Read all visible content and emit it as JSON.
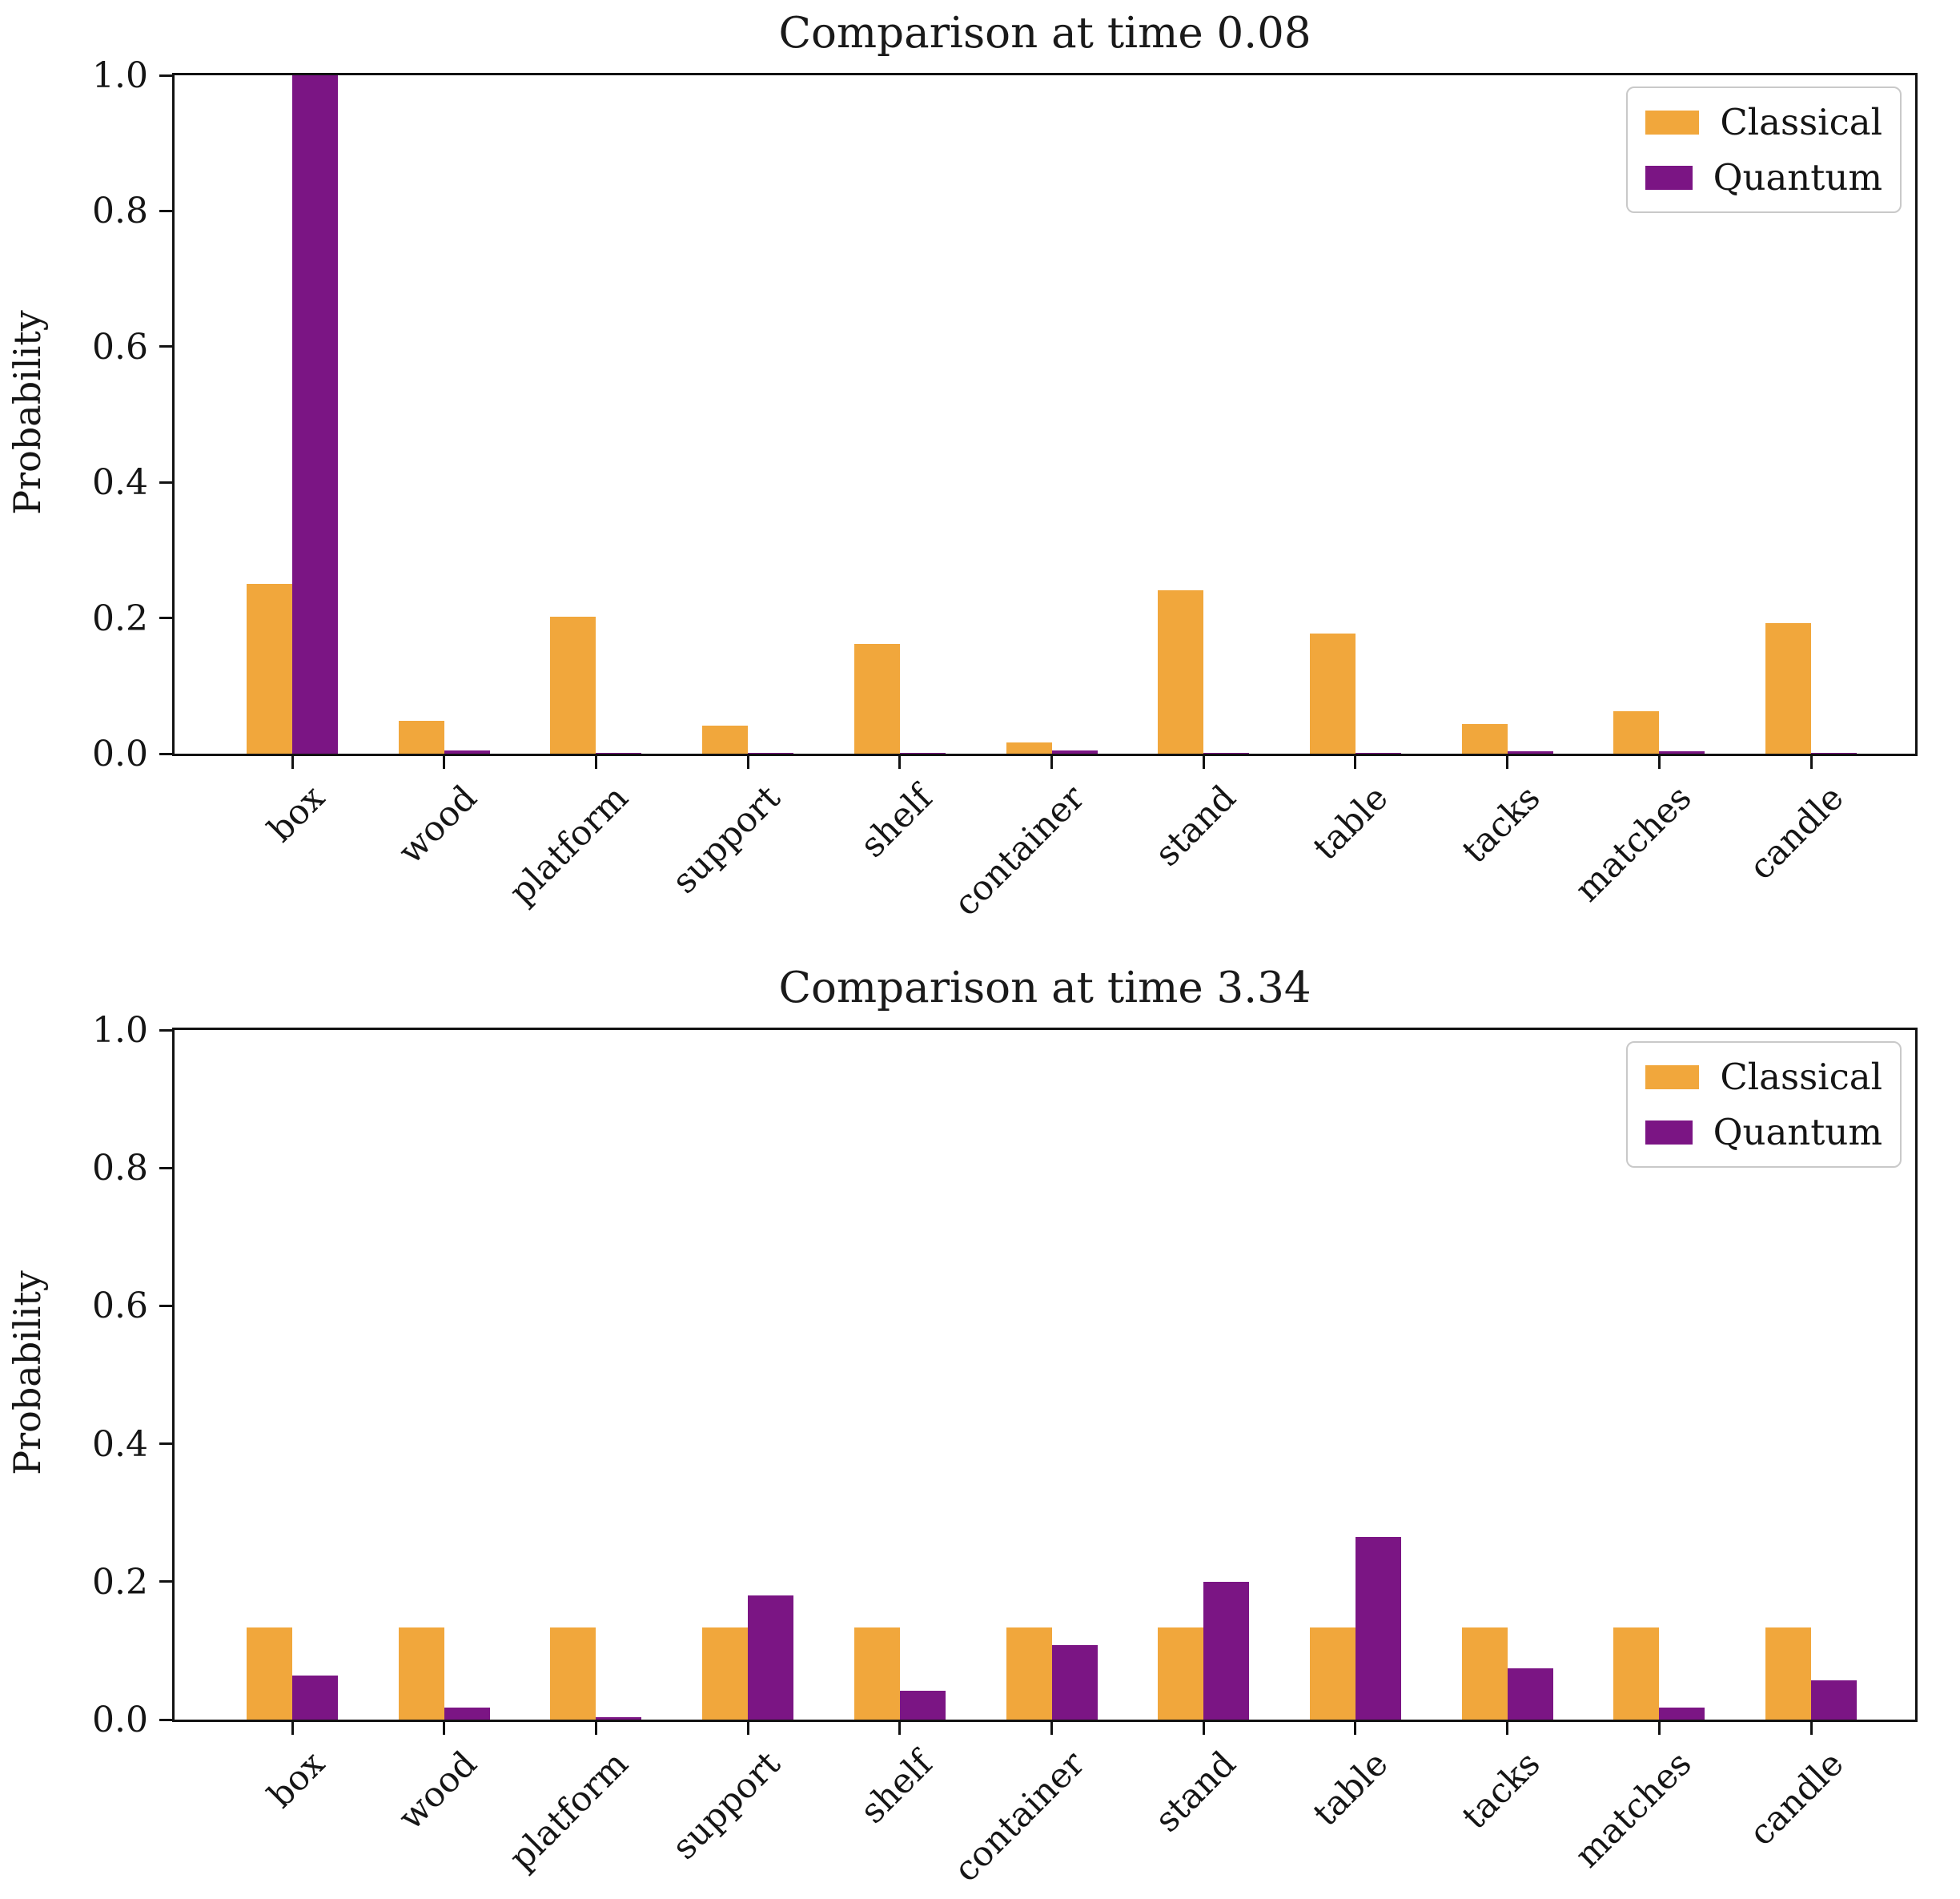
{
  "figure": {
    "background": "#ffffff"
  },
  "colors": {
    "classical": "#F1A73C",
    "quantum": "#7B1584",
    "axis": "#121212",
    "legend_border": "#c9c9c9",
    "text": "#1a1a1a"
  },
  "chart_data": [
    {
      "type": "bar",
      "title": "Comparison at time 0.08",
      "xlabel": "",
      "ylabel": "Probability",
      "ylim": [
        0,
        1
      ],
      "yticks": [
        0.0,
        0.2,
        0.4,
        0.6,
        0.8,
        1.0
      ],
      "yticklabels": [
        "0.0",
        "0.2",
        "0.4",
        "0.6",
        "0.8",
        "1.0"
      ],
      "categories": [
        "box",
        "wood",
        "platform",
        "support",
        "shelf",
        "container",
        "stand",
        "table",
        "tacks",
        "matches",
        "candle"
      ],
      "series": [
        {
          "name": "Classical",
          "color": "#F1A73C",
          "values": [
            0.25,
            0.048,
            0.202,
            0.041,
            0.162,
            0.017,
            0.241,
            0.177,
            0.044,
            0.063,
            0.192
          ]
        },
        {
          "name": "Quantum",
          "color": "#7B1584",
          "values": [
            1.0,
            0.005,
            0.001,
            0.001,
            0.001,
            0.005,
            0.001,
            0.001,
            0.004,
            0.004,
            0.001
          ]
        }
      ],
      "legend_position": "upper right",
      "grid": false
    },
    {
      "type": "bar",
      "title": "Comparison at time 3.34",
      "xlabel": "",
      "ylabel": "Probability",
      "ylim": [
        0,
        1
      ],
      "yticks": [
        0.0,
        0.2,
        0.4,
        0.6,
        0.8,
        1.0
      ],
      "yticklabels": [
        "0.0",
        "0.2",
        "0.4",
        "0.6",
        "0.8",
        "1.0"
      ],
      "categories": [
        "box",
        "wood",
        "platform",
        "support",
        "shelf",
        "container",
        "stand",
        "table",
        "tacks",
        "matches",
        "candle"
      ],
      "series": [
        {
          "name": "Classical",
          "color": "#F1A73C",
          "values": [
            0.133,
            0.133,
            0.133,
            0.133,
            0.133,
            0.133,
            0.133,
            0.133,
            0.133,
            0.133,
            0.133
          ]
        },
        {
          "name": "Quantum",
          "color": "#7B1584",
          "values": [
            0.064,
            0.017,
            0.003,
            0.18,
            0.042,
            0.108,
            0.2,
            0.265,
            0.074,
            0.018,
            0.057
          ]
        }
      ],
      "legend_position": "upper right",
      "grid": false
    }
  ]
}
